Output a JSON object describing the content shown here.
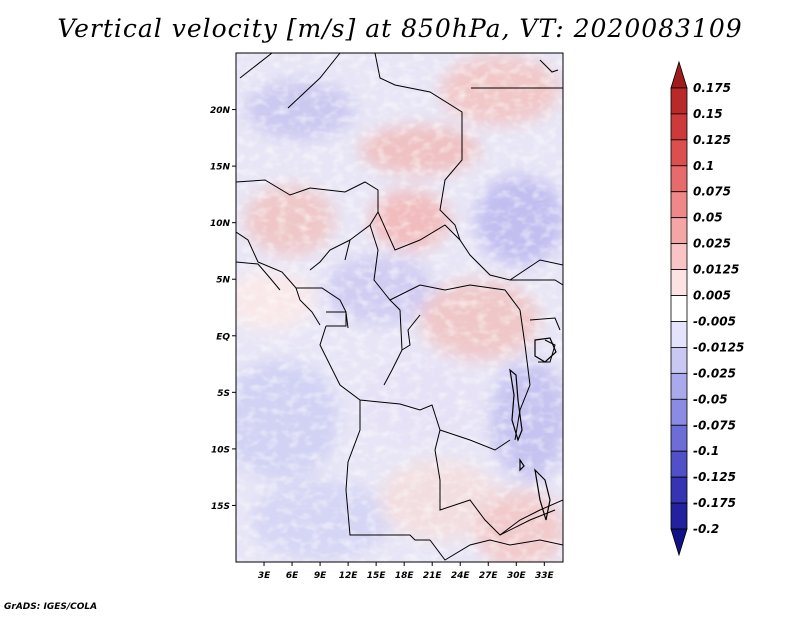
{
  "title": "Vertical velocity [m/s] at 850hPa, VT: 2020083109",
  "credit": "GrADS: IGES/COLA",
  "map": {
    "lon_range": [
      0,
      35
    ],
    "lat_range": [
      -20,
      25
    ],
    "lat_ticks": [
      {
        "value": 20,
        "label": "20N"
      },
      {
        "value": 15,
        "label": "15N"
      },
      {
        "value": 10,
        "label": "10N"
      },
      {
        "value": 5,
        "label": "5N"
      },
      {
        "value": 0,
        "label": "EQ"
      },
      {
        "value": -5,
        "label": "5S"
      },
      {
        "value": -10,
        "label": "10S"
      },
      {
        "value": -15,
        "label": "15S"
      }
    ],
    "lon_ticks": [
      {
        "value": 3,
        "label": "3E"
      },
      {
        "value": 6,
        "label": "6E"
      },
      {
        "value": 9,
        "label": "9E"
      },
      {
        "value": 12,
        "label": "12E"
      },
      {
        "value": 15,
        "label": "15E"
      },
      {
        "value": 18,
        "label": "18E"
      },
      {
        "value": 21,
        "label": "21E"
      },
      {
        "value": 24,
        "label": "24E"
      },
      {
        "value": 27,
        "label": "27E"
      },
      {
        "value": 30,
        "label": "30E"
      },
      {
        "value": 33,
        "label": "33E"
      }
    ]
  },
  "colorbar": {
    "labels": [
      "0.175",
      "0.15",
      "0.125",
      "0.1",
      "0.075",
      "0.05",
      "0.025",
      "0.0125",
      "0.005",
      "-0.005",
      "-0.0125",
      "-0.025",
      "-0.05",
      "-0.075",
      "-0.1",
      "-0.125",
      "-0.175",
      "-0.2"
    ],
    "colors": [
      "#a01d1d",
      "#b82a2a",
      "#cc3a3a",
      "#dc4f4f",
      "#e86b6b",
      "#ef8989",
      "#f4a5a5",
      "#f9c4c4",
      "#fce3e3",
      "#ffffff",
      "#e3e3fb",
      "#c8c8f3",
      "#a9a9ec",
      "#8b8be3",
      "#6d6dd8",
      "#5050c8",
      "#3535b4",
      "#22229e",
      "#121288"
    ]
  }
}
